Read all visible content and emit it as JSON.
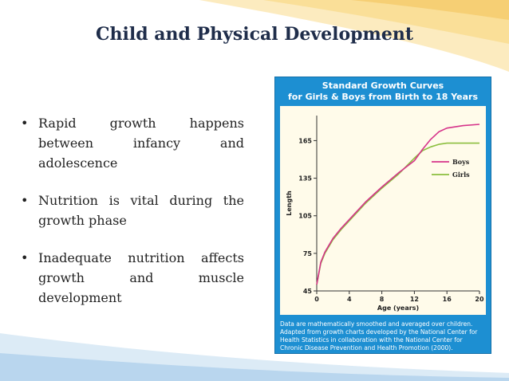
{
  "slide": {
    "title": "Child and Physical Development",
    "bullets": [
      "Rapid growth happens between infancy and adolescence",
      "Nutrition is vital during the growth phase",
      "Inadequate nutrition affects growth and muscle development"
    ]
  },
  "figure": {
    "title_line1": "Standard Growth Curves",
    "title_line2": "for Girls & Boys from Birth to 18 Years",
    "caption": "Data are mathematically smoothed and averaged over children. Adapted from growth charts developed by the National Center for Health Statistics in collaboration with the National Center for Chronic Disease Prevention and Health Promotion (2000).",
    "background_color": "#1d8fd2"
  },
  "chart_data": {
    "type": "line",
    "xlabel": "Age (years)",
    "ylabel": "Length",
    "xlim": [
      0,
      20
    ],
    "ylim": [
      45,
      185
    ],
    "xticks": [
      0,
      4,
      8,
      12,
      16,
      20
    ],
    "yticks": [
      45,
      75,
      105,
      135,
      165
    ],
    "grid": false,
    "legend_position": "top-right",
    "series": [
      {
        "name": "Boys",
        "color": "#d6338a",
        "x": [
          0,
          0.5,
          1,
          2,
          3,
          4,
          6,
          8,
          10,
          12,
          13,
          14,
          15,
          16,
          18,
          20
        ],
        "y": [
          50,
          68,
          76,
          87,
          95,
          102,
          116,
          128,
          139,
          149,
          158,
          166,
          172,
          175,
          177,
          178
        ]
      },
      {
        "name": "Girls",
        "color": "#8cbf3f",
        "x": [
          0,
          0.5,
          1,
          2,
          3,
          4,
          6,
          8,
          10,
          12,
          13,
          14,
          15,
          16,
          18,
          20
        ],
        "y": [
          50,
          67,
          75,
          86,
          94,
          101,
          115,
          127,
          138,
          151,
          157,
          160,
          162,
          163,
          163,
          163
        ]
      }
    ]
  }
}
